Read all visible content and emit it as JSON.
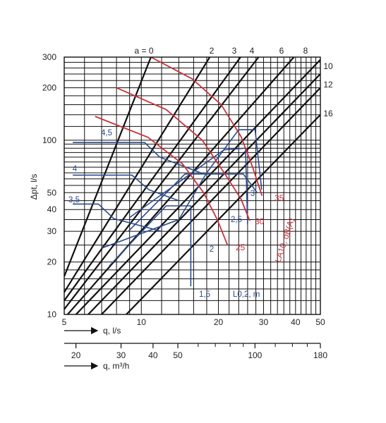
{
  "chart_data": {
    "type": "line",
    "x_scale": "log",
    "y_scale": "log",
    "xlim": [
      5,
      50
    ],
    "ylim": [
      10,
      300
    ],
    "x_ticks": [
      5,
      10,
      20,
      30,
      40,
      50
    ],
    "y_ticks": [
      10,
      20,
      30,
      40,
      50,
      100,
      200,
      300
    ],
    "m3h_ticks": [
      20,
      30,
      40,
      50,
      100,
      180
    ],
    "xlabel_ls": "q, l/s",
    "xlabel_m3h": "q, m³/h",
    "ylabel": "Δpt, l/s",
    "blade_title": "a = 0",
    "grid": true,
    "blade_lines": [
      {
        "label": "a = 0",
        "points": [
          [
            5,
            16.5
          ],
          [
            10.9,
            300
          ]
        ]
      },
      {
        "label": "2",
        "points": [
          [
            5,
            13.4
          ],
          [
            18.5,
            300
          ]
        ]
      },
      {
        "label": "3",
        "points": [
          [
            5,
            12
          ],
          [
            24.4,
            300
          ]
        ]
      },
      {
        "label": "4",
        "points": [
          [
            5,
            10.7
          ],
          [
            28.7,
            300
          ]
        ]
      },
      {
        "label": "6",
        "points": [
          [
            5,
            9.5
          ],
          [
            39.4,
            300
          ]
        ]
      },
      {
        "label": "8",
        "points": [
          [
            5,
            8.5
          ],
          [
            50,
            290
          ]
        ]
      },
      {
        "label": "10",
        "points": [
          [
            5,
            7.2
          ],
          [
            50,
            240
          ]
        ]
      },
      {
        "label": "12",
        "points": [
          [
            5,
            6
          ],
          [
            50,
            200
          ]
        ]
      },
      {
        "label": "16",
        "points": [
          [
            5,
            4.3
          ],
          [
            50,
            140
          ]
        ]
      }
    ],
    "sound_curves": [
      {
        "label": "35",
        "points": [
          [
            10.9,
            300
          ],
          [
            15.8,
            225
          ],
          [
            20.5,
            160
          ],
          [
            24.5,
            105
          ],
          [
            27.2,
            70
          ],
          [
            29.6,
            48
          ]
        ]
      },
      {
        "label": "30",
        "points": [
          [
            8,
            200
          ],
          [
            12.5,
            150
          ],
          [
            17.3,
            100
          ],
          [
            21.2,
            64
          ],
          [
            24.5,
            46
          ],
          [
            26.5,
            34.5
          ]
        ]
      },
      {
        "label": "25",
        "points": [
          [
            6.6,
            137
          ],
          [
            10.6,
            104
          ],
          [
            14.5,
            73
          ],
          [
            17.5,
            50
          ],
          [
            19.8,
            35
          ],
          [
            21.7,
            25
          ]
        ]
      }
    ],
    "throw_curves": [
      {
        "label": "4,5",
        "points": [
          [
            5.4,
            97
          ],
          [
            10.3,
            97
          ],
          [
            11.8,
            80
          ],
          [
            17.5,
            64
          ]
        ]
      },
      {
        "label": "4",
        "points": [
          [
            5.4,
            63
          ],
          [
            9.2,
            63
          ],
          [
            10.7,
            52
          ],
          [
            14,
            45
          ]
        ]
      },
      {
        "label": "3,5",
        "points": [
          [
            5.4,
            43
          ],
          [
            6.8,
            43
          ],
          [
            7.8,
            35.5
          ],
          [
            12,
            30
          ]
        ]
      },
      {
        "label": "3",
        "points": [
          [
            8.9,
            30
          ],
          [
            14.8,
            64
          ],
          [
            25,
            64
          ],
          [
            28.3,
            50
          ]
        ]
      },
      {
        "label": "2,5",
        "points": [
          [
            9,
            36
          ],
          [
            21,
            88
          ],
          [
            25.5,
            90
          ],
          [
            26,
            33
          ]
        ]
      },
      {
        "label": "2",
        "points": [
          [
            7,
            24
          ],
          [
            14,
            35
          ],
          [
            18,
            65
          ],
          [
            24,
            115
          ],
          [
            27.8,
            115
          ],
          [
            29.5,
            52
          ]
        ]
      },
      {
        "label": "1,5",
        "points": [
          [
            7.5,
            19
          ],
          [
            12.5,
            42
          ],
          [
            15.6,
            42
          ],
          [
            15.6,
            14.5
          ]
        ]
      }
    ],
    "throw_axis_label": "L0,2, m",
    "sound_axis_label": "LA10, dB(A)"
  }
}
